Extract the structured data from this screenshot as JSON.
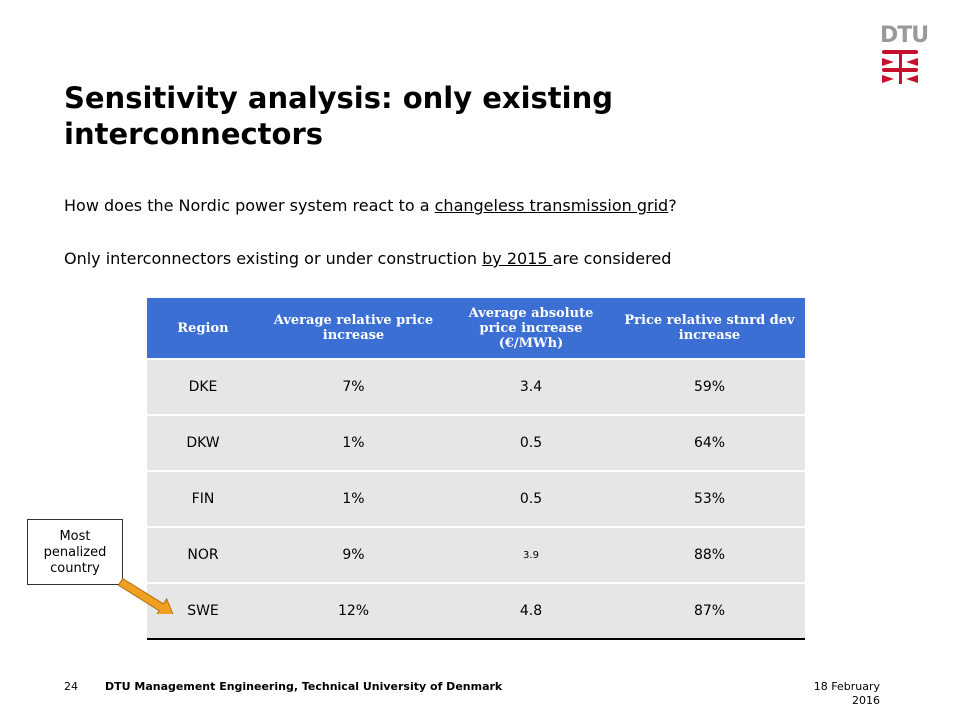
{
  "logo": {
    "text": "DTU"
  },
  "slide": {
    "title": "Sensitivity analysis: only existing interconnectors",
    "line1": {
      "before": "How does the Nordic power system react to a ",
      "underlined": "changeless transmission grid",
      "after": "?"
    },
    "line2": {
      "before": "Only interconnectors existing or under construction ",
      "underlined": "by 2015 ",
      "after": "are considered"
    }
  },
  "table": {
    "headers": [
      "Region",
      "Average relative price increase",
      "Average absolute price increase (€/MWh)",
      "Price relative stnrd dev increase"
    ],
    "rows": [
      [
        "DKE",
        "7%",
        "3.4",
        "59%"
      ],
      [
        "DKW",
        "1%",
        "0.5",
        "64%"
      ],
      [
        "FIN",
        "1%",
        "0.5",
        "53%"
      ],
      [
        "NOR",
        "9%",
        "3.9",
        "88%"
      ],
      [
        "SWE",
        "12%",
        "4.8",
        "87%"
      ]
    ]
  },
  "callout": {
    "line1": "Most",
    "line2": "penalized",
    "line3": "country"
  },
  "colors": {
    "header_bg": "#3b6fd4",
    "row_bg": "#e6e6e6",
    "logo_red": "#c8102e",
    "arrow": "#f0a020"
  },
  "footer": {
    "page_number": "24",
    "organization": "DTU Management Engineering, Technical University of Denmark",
    "date_line1": "18 February",
    "date_line2": "2016"
  }
}
